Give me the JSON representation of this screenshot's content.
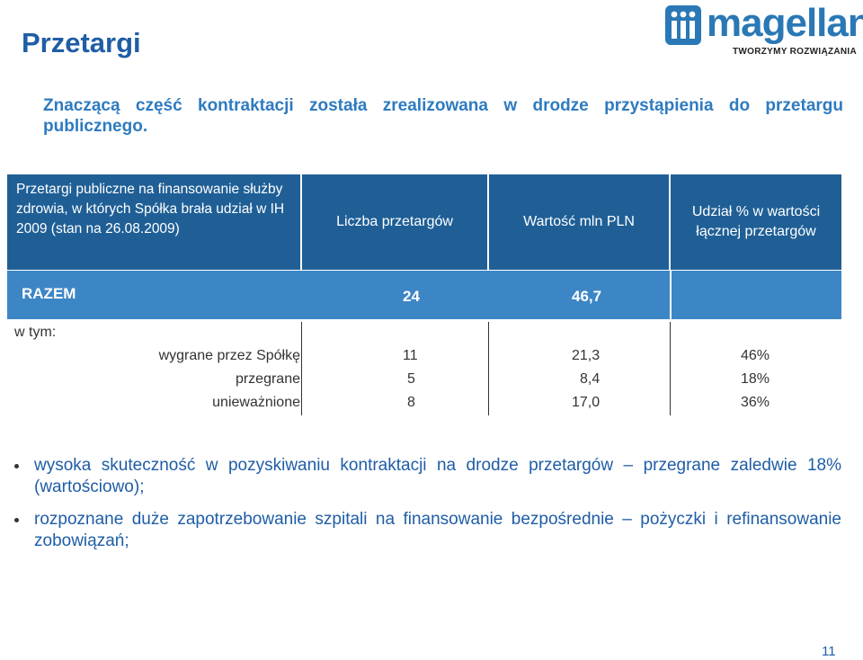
{
  "title": "Przetargi",
  "logo": {
    "name": "magellan",
    "tagline": "TWORZYMY ROZWIĄZANIA",
    "icon": "magellan-logo-mark"
  },
  "subtitle": "Znaczącą część kontraktacji została zrealizowana w drodze przystąpienia do przetargu publicznego.",
  "table": {
    "header_left": "Przetargi publiczne na finansowanie służby zdrowia, w których Spółka brała udział w IH 2009 (stan na 26.08.2009)",
    "col_count": "Liczba przetargów",
    "col_value": "Wartość mln PLN",
    "col_share": "Udział % w wartości łącznej przetargów",
    "total": {
      "label": "RAZEM",
      "count": "24",
      "value": "46,7"
    },
    "subheader": "w tym:",
    "rows": [
      {
        "label": "wygrane przez Spółkę",
        "count": "11",
        "value": "21,3",
        "share": "46%"
      },
      {
        "label": "przegrane",
        "count": "5",
        "value": "8,4",
        "share": "18%"
      },
      {
        "label": "unieważnione",
        "count": "8",
        "value": "17,0",
        "share": "36%"
      }
    ]
  },
  "bullets": [
    "wysoka skuteczność w pozyskiwaniu kontraktacji na drodze przetargów – przegrane zaledwie 18% (wartościowo);",
    "rozpoznane duże zapotrzebowanie szpitali na finansowanie bezpośrednie – pożyczki i refinansowanie zobowiązań;"
  ],
  "page_number": "11",
  "colors": {
    "header_dark": "#1f5f96",
    "header_light": "#3d86c6",
    "title_blue": "#1f5da6",
    "subtitle_blue": "#2e7bc0"
  }
}
